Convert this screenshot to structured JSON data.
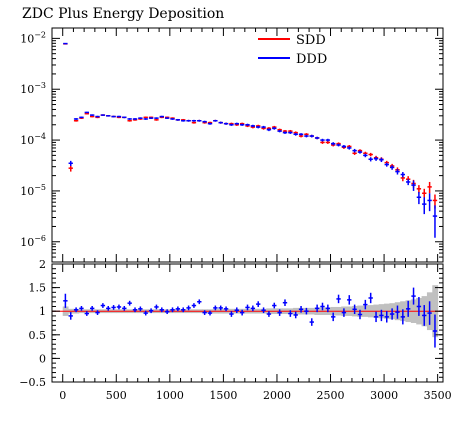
{
  "chart_data": {
    "type": "scatter",
    "title": "ZDC Plus Energy Deposition",
    "xlim": [
      -100,
      3550
    ],
    "x_ticks": [
      0,
      500,
      1000,
      1500,
      2000,
      2500,
      3000,
      3500
    ],
    "x_tick_labels": [
      "0",
      "500",
      "1000",
      "1500",
      "2000",
      "2500",
      "3000",
      "3500"
    ],
    "main": {
      "yscale": "log",
      "ylim": [
        4e-07,
        0.016
      ],
      "y_ticks": [
        1e-06,
        1e-05,
        0.0001,
        0.001,
        0.01
      ],
      "y_tick_labels": [
        "10−6",
        "10−5",
        "10−4",
        "10−3",
        "10−2"
      ],
      "legend": "top-right"
    },
    "ratio": {
      "ylim": [
        -0.5,
        2
      ],
      "y_ticks": [
        -0.5,
        0,
        0.5,
        1,
        1.5,
        2
      ],
      "y_tick_labels": [
        "−0.5",
        "0",
        "0.5",
        "1",
        "1.5",
        "2"
      ],
      "reference": 1
    },
    "colors": {
      "SDD": "#ff0000",
      "DDD": "#0000ff",
      "band": "#c0c0c0"
    },
    "x": [
      25,
      75,
      125,
      175,
      225,
      275,
      325,
      375,
      425,
      475,
      525,
      575,
      625,
      675,
      725,
      775,
      825,
      875,
      925,
      975,
      1025,
      1075,
      1125,
      1175,
      1225,
      1275,
      1325,
      1375,
      1425,
      1475,
      1525,
      1575,
      1625,
      1675,
      1725,
      1775,
      1825,
      1875,
      1925,
      1975,
      2025,
      2075,
      2125,
      2175,
      2225,
      2275,
      2325,
      2375,
      2425,
      2475,
      2525,
      2575,
      2625,
      2675,
      2725,
      2775,
      2825,
      2875,
      2925,
      2975,
      3025,
      3075,
      3125,
      3175,
      3225,
      3275,
      3325,
      3375,
      3425,
      3475
    ],
    "series": [
      {
        "name": "SDD",
        "y": [
          0.0078,
          2.8e-05,
          0.00024,
          0.00027,
          0.00033,
          0.00029,
          0.00028,
          0.00031,
          0.0003,
          0.00029,
          0.00028,
          0.00028,
          0.00024,
          0.00025,
          0.00026,
          0.00028,
          0.00028,
          0.00025,
          0.00028,
          0.00028,
          0.00027,
          0.00025,
          0.00025,
          0.00024,
          0.00022,
          0.00024,
          0.00022,
          0.00022,
          0.00024,
          0.00022,
          0.00021,
          0.00021,
          0.0002,
          0.00021,
          0.00019,
          0.00018,
          0.00019,
          0.00017,
          0.00017,
          0.00018,
          0.00016,
          0.00015,
          0.00015,
          0.00014,
          0.00012,
          0.00013,
          0.00012,
          0.00011,
          9e-05,
          9e-05,
          8e-05,
          8.5e-05,
          7.2e-05,
          7.5e-05,
          5.5e-05,
          6.2e-05,
          5.5e-05,
          5.2e-05,
          4.5e-05,
          4.2e-05,
          3.6e-05,
          3.1e-05,
          2.6e-05,
          1.8e-05,
          1.7e-05,
          1.4e-05,
          1.1e-05,
          9e-06,
          1.2e-05,
          6.5e-06
        ],
        "err": [
          0.0001,
          4e-06,
          1e-05,
          1e-05,
          1e-05,
          1e-05,
          1e-05,
          1e-05,
          1e-05,
          1e-05,
          1e-05,
          1e-05,
          1e-05,
          1e-05,
          1e-05,
          1e-05,
          1e-05,
          1e-05,
          1e-05,
          1e-05,
          1e-05,
          1e-05,
          1e-05,
          1e-05,
          1e-05,
          1e-05,
          1e-05,
          1e-05,
          1e-05,
          1e-05,
          1e-05,
          1e-05,
          1e-05,
          1e-05,
          1e-05,
          1e-05,
          1e-05,
          1e-05,
          1e-05,
          1e-05,
          8e-06,
          8e-06,
          8e-06,
          8e-06,
          7e-06,
          7e-06,
          7e-06,
          6e-06,
          6e-06,
          6e-06,
          5e-06,
          5e-06,
          5e-06,
          5e-06,
          4e-06,
          4e-06,
          4e-06,
          4e-06,
          4e-06,
          4e-06,
          3e-06,
          3e-06,
          3e-06,
          2.5e-06,
          2.5e-06,
          2.5e-06,
          2e-06,
          2e-06,
          3e-06,
          2e-06
        ]
      },
      {
        "name": "DDD",
        "y": [
          0.0079,
          3.5e-05,
          0.00026,
          0.00028,
          0.00035,
          0.00031,
          0.00029,
          0.00031,
          0.0003,
          0.00029,
          0.00029,
          0.00028,
          0.00026,
          0.00026,
          0.00027,
          0.00026,
          0.00027,
          0.00027,
          0.00029,
          0.00027,
          0.00026,
          0.00025,
          0.00024,
          0.00024,
          0.00024,
          0.00024,
          0.00023,
          0.00021,
          0.00024,
          0.00022,
          0.00021,
          0.0002,
          0.00021,
          0.0002,
          0.0002,
          0.00019,
          0.00018,
          0.00018,
          0.00016,
          0.00017,
          0.00015,
          0.00014,
          0.00014,
          0.00013,
          0.00013,
          0.00012,
          0.00012,
          0.00011,
          0.0001,
          0.0001,
          8.5e-05,
          8e-05,
          7.5e-05,
          7e-05,
          6.2e-05,
          5.8e-05,
          5e-05,
          4.2e-05,
          4.3e-05,
          4.1e-05,
          3.3e-05,
          2.9e-05,
          2.4e-05,
          2.1e-05,
          1.5e-05,
          1.3e-05,
          7.5e-06,
          5.5e-06,
          6.5e-06,
          3.2e-06
        ],
        "err": [
          0.0001,
          4e-06,
          1e-05,
          1e-05,
          1e-05,
          1e-05,
          1e-05,
          1e-05,
          1e-05,
          1e-05,
          1e-05,
          1e-05,
          1e-05,
          1e-05,
          1e-05,
          1e-05,
          1e-05,
          1e-05,
          1e-05,
          1e-05,
          1e-05,
          1e-05,
          1e-05,
          1e-05,
          1e-05,
          1e-05,
          1e-05,
          1e-05,
          1e-05,
          1e-05,
          1e-05,
          1e-05,
          1e-05,
          1e-05,
          1e-05,
          1e-05,
          1e-05,
          1e-05,
          1e-05,
          1e-05,
          8e-06,
          8e-06,
          8e-06,
          8e-06,
          7e-06,
          7e-06,
          7e-06,
          6e-06,
          6e-06,
          6e-06,
          6e-06,
          5e-06,
          5e-06,
          5e-06,
          5e-06,
          4e-06,
          4e-06,
          4e-06,
          4e-06,
          4e-06,
          3e-06,
          3e-06,
          3e-06,
          2.5e-06,
          2e-06,
          3e-06,
          2e-06,
          2e-06,
          2.5e-06,
          2e-06
        ]
      }
    ],
    "ratio_values": [
      1.22,
      0.9,
      1.03,
      1.06,
      0.95,
      1.06,
      0.97,
      1.12,
      1.06,
      1.08,
      1.09,
      1.06,
      1.17,
      1.03,
      1.05,
      0.96,
      1.01,
      1.09,
      1.03,
      0.99,
      1.03,
      1.05,
      1.03,
      1.07,
      1.12,
      1.2,
      0.97,
      0.96,
      1.07,
      1.07,
      1.05,
      0.94,
      1.02,
      0.97,
      1.08,
      1.06,
      1.15,
      1.02,
      0.94,
      1.12,
      0.97,
      1.18,
      0.95,
      0.92,
      1.04,
      1.0,
      0.77,
      1.06,
      1.1,
      1.06,
      0.88,
      1.26,
      0.97,
      1.24,
      1.04,
      0.93,
      1.14,
      1.28,
      0.88,
      0.91,
      0.88,
      0.94,
      0.98,
      0.88,
      1.05,
      1.32,
      1.1,
      0.91,
      0.96,
      0.58
    ],
    "ratio_errors": [
      0.15,
      0.08,
      0.05,
      0.05,
      0.05,
      0.05,
      0.05,
      0.05,
      0.05,
      0.05,
      0.05,
      0.05,
      0.05,
      0.05,
      0.05,
      0.05,
      0.05,
      0.05,
      0.05,
      0.05,
      0.05,
      0.05,
      0.05,
      0.05,
      0.05,
      0.05,
      0.05,
      0.05,
      0.05,
      0.05,
      0.05,
      0.06,
      0.06,
      0.06,
      0.06,
      0.06,
      0.06,
      0.06,
      0.06,
      0.06,
      0.07,
      0.07,
      0.07,
      0.07,
      0.07,
      0.07,
      0.08,
      0.08,
      0.08,
      0.08,
      0.09,
      0.09,
      0.09,
      0.1,
      0.1,
      0.1,
      0.1,
      0.11,
      0.11,
      0.12,
      0.12,
      0.12,
      0.14,
      0.16,
      0.17,
      0.18,
      0.2,
      0.22,
      0.25,
      0.35
    ],
    "ratio_band": [
      0.1,
      0.05,
      0.05,
      0.04,
      0.04,
      0.04,
      0.04,
      0.04,
      0.04,
      0.04,
      0.04,
      0.04,
      0.04,
      0.04,
      0.04,
      0.04,
      0.04,
      0.04,
      0.04,
      0.04,
      0.04,
      0.04,
      0.04,
      0.04,
      0.04,
      0.04,
      0.04,
      0.04,
      0.05,
      0.05,
      0.05,
      0.05,
      0.05,
      0.05,
      0.05,
      0.05,
      0.05,
      0.05,
      0.06,
      0.06,
      0.06,
      0.06,
      0.06,
      0.07,
      0.07,
      0.07,
      0.07,
      0.08,
      0.08,
      0.08,
      0.09,
      0.09,
      0.1,
      0.1,
      0.11,
      0.12,
      0.12,
      0.13,
      0.14,
      0.15,
      0.16,
      0.17,
      0.19,
      0.21,
      0.23,
      0.25,
      0.28,
      0.32,
      0.4,
      0.55
    ]
  }
}
